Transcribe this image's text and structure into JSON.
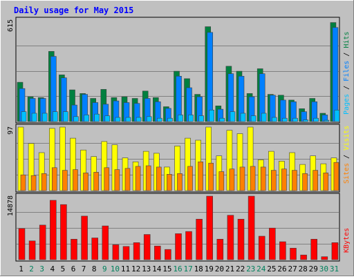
{
  "chart_data": {
    "type": "bar",
    "title": "Daily usage for May 2015",
    "categories": [
      "1",
      "2",
      "3",
      "4",
      "5",
      "6",
      "7",
      "8",
      "9",
      "10",
      "11",
      "12",
      "13",
      "14",
      "15",
      "16",
      "17",
      "18",
      "19",
      "20",
      "21",
      "22",
      "23",
      "24",
      "25",
      "26",
      "27",
      "28",
      "29",
      "30",
      "31"
    ],
    "weekend_days": [
      "2",
      "3",
      "9",
      "10",
      "16",
      "17",
      "23",
      "24",
      "30",
      "31"
    ],
    "panels": [
      {
        "name": "hits-files-pages",
        "ymax_label": "615",
        "ymax": 615,
        "labels": [
          "Pages",
          "Files",
          "Hits"
        ],
        "series": [
          {
            "name": "Hits",
            "values": [
              238,
              150,
              145,
              425,
              283,
              192,
              170,
              140,
              195,
              145,
              150,
              140,
              185,
              145,
              90,
              305,
              260,
              165,
              575,
              95,
              335,
              305,
              170,
              320,
              165,
              160,
              130,
              78,
              140,
              50,
              600
            ]
          },
          {
            "name": "Files",
            "values": [
              200,
              140,
              140,
              395,
              265,
              100,
              165,
              115,
              105,
              125,
              115,
              110,
              140,
              120,
              80,
              275,
              205,
              150,
              540,
              75,
              290,
              275,
              150,
              290,
              160,
              130,
              120,
              60,
              120,
              40,
              570
            ]
          },
          {
            "name": "Pages",
            "values": [
              60,
              50,
              50,
              60,
              60,
              30,
              40,
              45,
              35,
              25,
              25,
              25,
              30,
              20,
              20,
              40,
              40,
              35,
              70,
              20,
              60,
              50,
              35,
              50,
              25,
              20,
              20,
              10,
              20,
              8,
              70
            ]
          }
        ]
      },
      {
        "name": "visits-sites",
        "ymax_label": "97",
        "ymax": 97,
        "labels": [
          "Sites",
          "Visits"
        ],
        "series": [
          {
            "name": "Visits",
            "values": [
              97,
              72,
              58,
              95,
              97,
              80,
              62,
              52,
              75,
              70,
              50,
              44,
              60,
              57,
              36,
              68,
              80,
              77,
              97,
              53,
              92,
              87,
              97,
              47,
              60,
              45,
              58,
              40,
              53,
              41,
              50
            ]
          },
          {
            "name": "Sites",
            "values": [
              24,
              23,
              26,
              35,
              31,
              32,
              27,
              28,
              35,
              32,
              34,
              37,
              38,
              36,
              25,
              26,
              37,
              44,
              42,
              29,
              33,
              36,
              37,
              36,
              31,
              33,
              31,
              26,
              31,
              27,
              43
            ]
          }
        ]
      },
      {
        "name": "kbytes",
        "ymax_label": "14878",
        "ymax": 14878,
        "labels": [
          "KBytes"
        ],
        "series": [
          {
            "name": "KBytes",
            "values": [
              7300,
              4400,
              8100,
              13900,
              12900,
              4800,
              10200,
              5100,
              7900,
              3500,
              3100,
              4000,
              5900,
              3200,
              2400,
              6100,
              6600,
              9500,
              14878,
              4800,
              10400,
              9500,
              14878,
              5500,
              7400,
              4200,
              2700,
              1100,
              4800,
              700,
              4000
            ]
          }
        ]
      }
    ],
    "colors": {
      "hits": "#008040",
      "files": "#0080ff",
      "pages": "#00c0ff",
      "visits": "#ffff00",
      "sites": "#ff8000",
      "kbytes": "#ff0000",
      "title": "#0000ff",
      "weekend_label": "#00805c",
      "weekday_label": "#000000",
      "panel_bg": "#c0c0c0"
    }
  }
}
